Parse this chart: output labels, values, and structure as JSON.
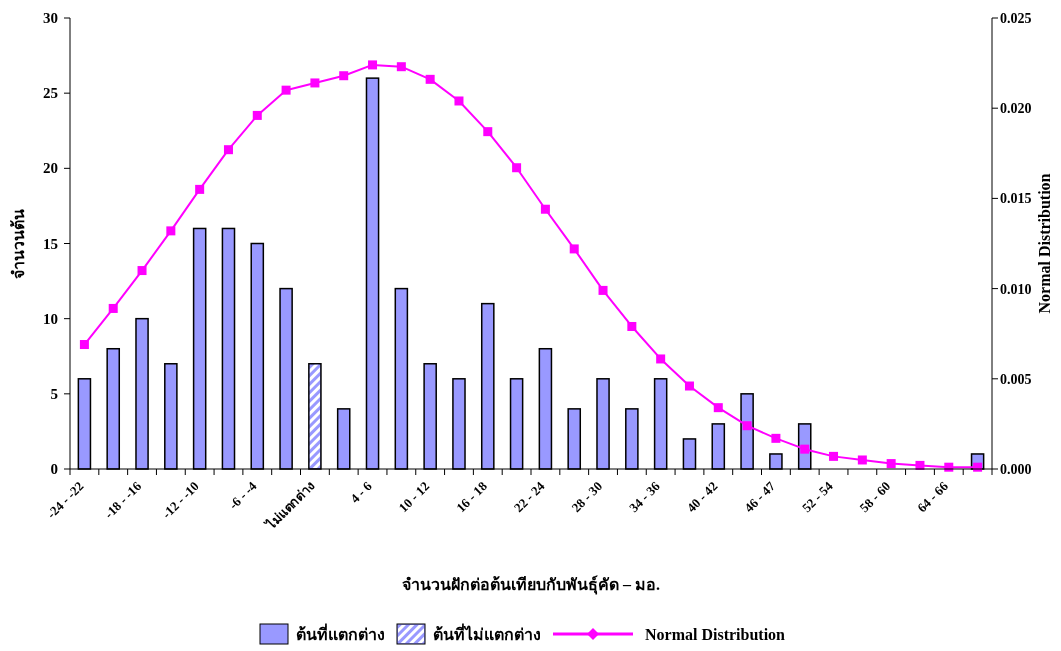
{
  "chart_data": {
    "type": "bar",
    "xlabel": "จำนวนฝักต่อต้นเทียบกับพันธุ์คัด – มอ.",
    "ylabel": "จำนวนต้น",
    "y2label": "Normal Distribution",
    "categories": [
      "-24 - -22",
      null,
      "-18 - -16",
      null,
      "-12 - -10",
      null,
      "-6 - -4",
      null,
      "ไม่แตกต่าง",
      null,
      "4 - 6",
      null,
      "10 - 12",
      null,
      "16 - 18",
      null,
      "22 - 24",
      null,
      "28 - 30",
      null,
      "34 - 36",
      null,
      "40 - 42",
      null,
      "46 - 47",
      null,
      "52 - 54",
      null,
      "58 - 60",
      null,
      "64 - 66",
      null
    ],
    "series": [
      {
        "name": "ต้นที่แตกต่าง",
        "color": "#9999ff",
        "values": [
          6,
          8,
          10,
          7,
          16,
          16,
          15,
          12,
          null,
          4,
          26,
          12,
          7,
          6,
          11,
          6,
          8,
          4,
          6,
          4,
          6,
          2,
          3,
          5,
          1,
          3,
          0,
          0,
          0,
          0,
          0,
          1
        ]
      },
      {
        "name": "ต้นที่ไม่แตกต่าง",
        "color": "#9999ff",
        "values": [
          null,
          null,
          null,
          null,
          null,
          null,
          null,
          null,
          7,
          null,
          null,
          null,
          null,
          null,
          null,
          null,
          null,
          null,
          null,
          null,
          null,
          null,
          null,
          null,
          null,
          null,
          null,
          null,
          null,
          null,
          null,
          null
        ]
      },
      {
        "name": "Normal Distribution",
        "type": "line",
        "axis": "y2",
        "color": "#ff00ff",
        "values": [
          0.0069,
          0.0089,
          0.011,
          0.0132,
          0.0155,
          0.0177,
          0.0196,
          0.021,
          0.0214,
          0.0218,
          0.0224,
          0.0223,
          0.0216,
          0.0204,
          0.0187,
          0.0167,
          0.0144,
          0.0122,
          0.0099,
          0.0079,
          0.0061,
          0.0046,
          0.0034,
          0.0024,
          0.0017,
          0.0011,
          0.0007,
          0.0005,
          0.0003,
          0.0002,
          0.0001,
          0.0001
        ]
      }
    ],
    "ylim": [
      0,
      30
    ],
    "yticks": [
      0,
      5,
      10,
      15,
      20,
      25,
      30
    ],
    "y2lim": [
      0,
      0.025
    ],
    "y2ticks": [
      {
        "value": 0,
        "label": "0.000"
      },
      {
        "value": 0.005,
        "label": "0.005"
      },
      {
        "value": 0.01,
        "label": "0.010"
      },
      {
        "value": 0.015,
        "label": "0.015"
      },
      {
        "value": 0.02,
        "label": "0.020"
      },
      {
        "value": 0.025,
        "label": "0.025"
      }
    ],
    "grid": false,
    "legend": "bottom",
    "marker": "square",
    "line_style": "solid"
  }
}
